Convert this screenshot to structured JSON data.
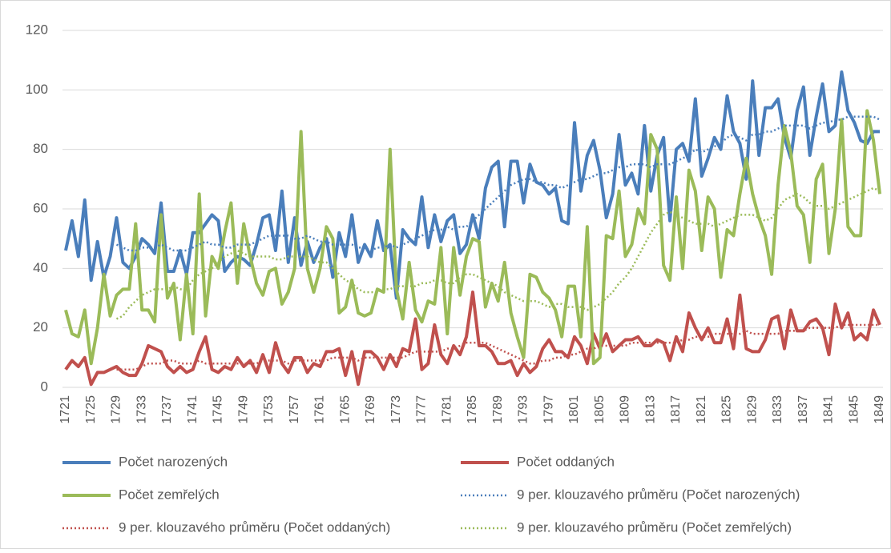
{
  "chart_data": {
    "type": "line",
    "categories": [
      "1721",
      null,
      null,
      null,
      "1725",
      null,
      null,
      null,
      "1729",
      null,
      null,
      null,
      "1733",
      null,
      null,
      null,
      "1737",
      null,
      null,
      null,
      "1741",
      null,
      null,
      null,
      "1745",
      null,
      null,
      null,
      "1749",
      null,
      null,
      null,
      "1753",
      null,
      null,
      null,
      "1757",
      null,
      null,
      null,
      "1761",
      null,
      null,
      null,
      "1765",
      null,
      null,
      null,
      "1769",
      null,
      null,
      null,
      "1773",
      null,
      null,
      null,
      "1777",
      null,
      null,
      null,
      "1781",
      null,
      null,
      null,
      "1785",
      null,
      null,
      null,
      "1789",
      null,
      null,
      null,
      "1793",
      null,
      null,
      null,
      "1797",
      null,
      null,
      null,
      "1801",
      null,
      null,
      null,
      "1805",
      null,
      null,
      null,
      "1809",
      null,
      null,
      null,
      "1813",
      null,
      null,
      null,
      "1817",
      null,
      null,
      null,
      "1821",
      null,
      null,
      null,
      "1825",
      null,
      null,
      null,
      "1829",
      null,
      null,
      null,
      "1833",
      null,
      null,
      null,
      "1837",
      null,
      null,
      null,
      "1841",
      null,
      null,
      null,
      "1845",
      null,
      null,
      null,
      "1849"
    ],
    "ylim": [
      0,
      120
    ],
    "yticks": [
      0,
      20,
      40,
      60,
      80,
      100,
      120
    ],
    "grid": true,
    "series": [
      {
        "name": "Počet narozených",
        "color": "#4a7ebb",
        "style": "solid",
        "values": [
          46,
          56,
          44,
          63,
          36,
          49,
          37,
          44,
          57,
          42,
          40,
          44,
          50,
          48,
          45,
          62,
          39,
          39,
          46,
          38,
          52,
          52,
          55,
          58,
          56,
          39,
          42,
          44,
          43,
          41,
          48,
          57,
          58,
          46,
          66,
          42,
          57,
          41,
          49,
          42,
          47,
          50,
          37,
          52,
          44,
          58,
          42,
          48,
          44,
          56,
          46,
          48,
          30,
          53,
          50,
          48,
          64,
          47,
          58,
          49,
          56,
          58,
          45,
          48,
          58,
          50,
          67,
          74,
          76,
          54,
          76,
          76,
          62,
          75,
          69,
          68,
          65,
          67,
          56,
          55,
          89,
          66,
          78,
          83,
          73,
          57,
          65,
          85,
          68,
          72,
          65,
          88,
          66,
          78,
          84,
          56,
          80,
          82,
          76,
          97,
          71,
          77,
          84,
          80,
          98,
          86,
          82,
          70,
          103,
          78,
          94,
          94,
          97,
          84,
          77,
          93,
          101,
          78,
          91,
          102,
          86,
          88,
          106,
          93,
          89,
          83,
          82,
          86,
          86
        ]
      },
      {
        "name": "Počet oddaných",
        "color": "#c0504d",
        "style": "solid",
        "values": [
          6,
          9,
          7,
          10,
          1,
          5,
          5,
          6,
          7,
          5,
          4,
          4,
          8,
          14,
          13,
          12,
          7,
          5,
          7,
          5,
          6,
          12,
          17,
          6,
          5,
          7,
          6,
          10,
          7,
          9,
          5,
          11,
          5,
          15,
          8,
          5,
          10,
          10,
          5,
          8,
          7,
          12,
          12,
          13,
          4,
          12,
          1,
          12,
          12,
          10,
          6,
          11,
          7,
          13,
          12,
          23,
          6,
          8,
          21,
          11,
          8,
          14,
          11,
          17,
          32,
          14,
          14,
          12,
          8,
          8,
          9,
          4,
          8,
          5,
          7,
          13,
          16,
          12,
          12,
          10,
          17,
          14,
          8,
          18,
          13,
          18,
          12,
          14,
          16,
          16,
          17,
          14,
          14,
          16,
          15,
          9,
          17,
          12,
          25,
          20,
          16,
          20,
          15,
          15,
          23,
          13,
          31,
          13,
          12,
          12,
          16,
          23,
          24,
          13,
          26,
          19,
          19,
          22,
          23,
          20,
          11,
          28,
          20,
          25,
          16,
          18,
          16,
          26,
          21
        ]
      },
      {
        "name": "Počet zemřelých",
        "color": "#9bbb59",
        "style": "solid",
        "values": [
          26,
          18,
          17,
          26,
          8,
          20,
          38,
          24,
          31,
          33,
          33,
          55,
          26,
          26,
          22,
          58,
          30,
          35,
          16,
          38,
          18,
          65,
          24,
          44,
          40,
          52,
          62,
          35,
          55,
          44,
          35,
          31,
          39,
          40,
          28,
          32,
          40,
          86,
          40,
          32,
          40,
          54,
          50,
          25,
          27,
          36,
          25,
          24,
          25,
          33,
          32,
          80,
          33,
          23,
          42,
          26,
          22,
          29,
          28,
          47,
          18,
          47,
          31,
          44,
          50,
          49,
          27,
          35,
          29,
          42,
          25,
          17,
          10,
          38,
          37,
          32,
          30,
          26,
          17,
          34,
          34,
          17,
          54,
          8,
          10,
          51,
          50,
          66,
          44,
          48,
          60,
          55,
          85,
          80,
          41,
          36,
          64,
          40,
          73,
          66,
          46,
          64,
          60,
          37,
          53,
          51,
          65,
          77,
          65,
          57,
          51,
          38,
          68,
          88,
          79,
          61,
          58,
          42,
          70,
          75,
          45,
          60,
          90,
          54,
          51,
          51,
          93,
          83,
          65
        ]
      },
      {
        "name": "9 per. klouzavého průměru (Počet narozených)",
        "color": "#4a7ebb",
        "style": "dotted",
        "values": [
          null,
          null,
          null,
          null,
          null,
          null,
          null,
          null,
          48,
          47,
          46,
          46,
          47,
          47,
          47,
          48,
          47,
          46,
          46,
          46,
          47,
          48,
          49,
          48,
          48,
          47,
          47,
          48,
          48,
          48,
          49,
          50,
          51,
          51,
          51,
          51,
          50,
          50,
          51,
          50,
          49,
          49,
          48,
          48,
          48,
          48,
          47,
          47,
          46,
          47,
          47,
          48,
          47,
          48,
          49,
          50,
          51,
          52,
          53,
          53,
          54,
          53,
          54,
          54,
          56,
          58,
          60,
          62,
          64,
          66,
          68,
          69,
          70,
          70,
          69,
          69,
          68,
          68,
          67,
          68,
          69,
          70,
          70,
          71,
          72,
          72,
          73,
          74,
          74,
          75,
          75,
          75,
          74,
          75,
          75,
          75,
          76,
          77,
          78,
          80,
          79,
          80,
          81,
          82,
          84,
          85,
          84,
          83,
          85,
          85,
          86,
          86,
          87,
          88,
          88,
          88,
          88,
          87,
          88,
          89,
          89,
          90,
          90,
          91,
          91,
          91,
          91,
          91,
          90
        ]
      },
      {
        "name": "9 per. klouzavého průměru (Počet oddaných)",
        "color": "#c0504d",
        "style": "dotted",
        "values": [
          null,
          null,
          null,
          null,
          null,
          null,
          null,
          null,
          6,
          6,
          6,
          6,
          7,
          8,
          8,
          8,
          9,
          9,
          8,
          8,
          8,
          9,
          8,
          8,
          8,
          8,
          8,
          8,
          8,
          8,
          8,
          9,
          9,
          9,
          9,
          8,
          9,
          9,
          9,
          9,
          9,
          9,
          10,
          10,
          10,
          10,
          9,
          10,
          10,
          10,
          10,
          10,
          10,
          10,
          11,
          12,
          12,
          12,
          12,
          12,
          13,
          13,
          14,
          15,
          15,
          15,
          15,
          14,
          13,
          12,
          11,
          10,
          9,
          8,
          8,
          9,
          9,
          10,
          10,
          11,
          11,
          12,
          13,
          13,
          14,
          14,
          14,
          14,
          14,
          15,
          15,
          15,
          15,
          15,
          15,
          15,
          15,
          16,
          16,
          17,
          17,
          17,
          18,
          18,
          18,
          18,
          18,
          19,
          18,
          18,
          18,
          18,
          18,
          19,
          19,
          19,
          19,
          20,
          20,
          20,
          20,
          20,
          21,
          21,
          21,
          21,
          21,
          21,
          21
        ]
      },
      {
        "name": "9 per. klouzavého průměru (Počet zemřelých)",
        "color": "#9bbb59",
        "style": "dotted",
        "values": [
          null,
          null,
          null,
          null,
          null,
          null,
          null,
          null,
          23,
          24,
          27,
          29,
          31,
          32,
          33,
          33,
          33,
          34,
          33,
          33,
          36,
          38,
          39,
          40,
          42,
          44,
          45,
          46,
          45,
          44,
          44,
          44,
          44,
          43,
          43,
          44,
          44,
          44,
          44,
          43,
          42,
          42,
          40,
          38,
          36,
          35,
          33,
          32,
          32,
          32,
          33,
          33,
          34,
          34,
          34,
          34,
          35,
          35,
          36,
          36,
          35,
          35,
          37,
          38,
          38,
          37,
          36,
          35,
          34,
          32,
          31,
          30,
          29,
          29,
          29,
          28,
          27,
          28,
          28,
          27,
          27,
          27,
          26,
          27,
          28,
          30,
          32,
          35,
          37,
          40,
          44,
          48,
          52,
          55,
          58,
          59,
          58,
          57,
          56,
          55,
          55,
          55,
          54,
          55,
          56,
          57,
          58,
          58,
          58,
          57,
          56,
          57,
          60,
          63,
          64,
          65,
          64,
          62,
          61,
          61,
          60,
          61,
          62,
          63,
          64,
          65,
          66,
          67,
          66
        ]
      }
    ]
  }
}
